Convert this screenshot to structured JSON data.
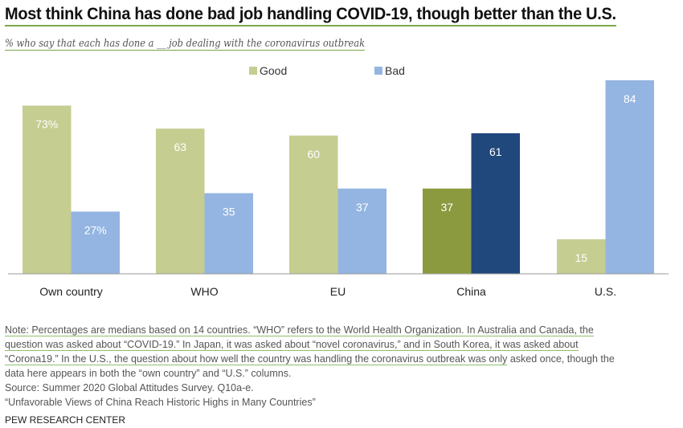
{
  "chart_data": {
    "type": "bar",
    "title": "Most think China has done bad job handling COVID-19, though better than the U.S.",
    "subtitle": "% who say that each has done a __ job dealing with the coronavirus outbreak",
    "categories": [
      "Own country",
      "WHO",
      "EU",
      "China",
      "U.S."
    ],
    "series": [
      {
        "name": "Good",
        "values": [
          73,
          63,
          60,
          37,
          15
        ],
        "labels": [
          "73%",
          "63",
          "60",
          "37",
          "15"
        ]
      },
      {
        "name": "Bad",
        "values": [
          27,
          35,
          37,
          61,
          84
        ],
        "labels": [
          "27%",
          "35",
          "37",
          "61",
          "84"
        ]
      }
    ],
    "ylim": [
      0,
      100
    ],
    "legend": "top-center",
    "colors": {
      "good": "#c6cd90",
      "bad": "#94b5e1",
      "china_good": "#8b9a3f",
      "china_bad": "#20487c",
      "label": "#ffffff"
    }
  },
  "notes": {
    "underlined": [
      "Note: Percentages are medians based on 14 countries. “WHO” refers to the World Health Organization. In Australia and Canada, the",
      "question was asked about “COVID-19.” In Japan, it was asked about “novel coronavirus,” and in South Korea, it was asked about",
      "“Corona19.” In the U.S., the question about how well the country was handling the coronavirus outbreak was only"
    ],
    "line3_rest": " asked once, though the",
    "line4": "data here appears in both the “own country” and “U.S.” columns.",
    "source": "Source: Summer 2020 Global Attitudes Survey. Q10a-e.",
    "report": "“Unfavorable Views of China Reach Historic Highs in Many Countries”"
  },
  "footer": "PEW RESEARCH CENTER"
}
